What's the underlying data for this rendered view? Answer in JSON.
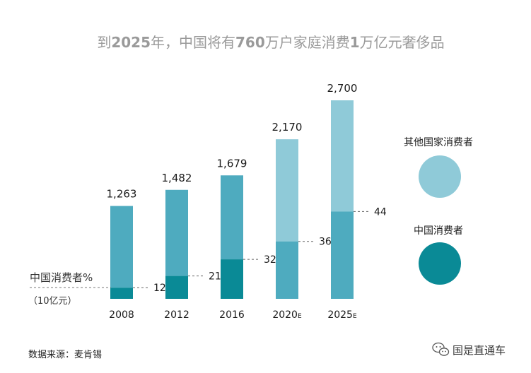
{
  "title_parts": [
    {
      "text": "到",
      "bold": false
    },
    {
      "text": "2025",
      "bold": true
    },
    {
      "text": "年，中国将有",
      "bold": false
    },
    {
      "text": "760",
      "bold": true
    },
    {
      "text": "万户家庭消费",
      "bold": false
    },
    {
      "text": "1",
      "bold": true
    },
    {
      "text": "万亿元奢侈品",
      "bold": false
    }
  ],
  "chart_data": {
    "type": "bar",
    "stacked": true,
    "categories": [
      "2008",
      "2012",
      "2016",
      "2020",
      "2025"
    ],
    "category_suffix": [
      "",
      "",
      "",
      "E",
      "E"
    ],
    "totals": [
      1263,
      1482,
      1679,
      2170,
      2700
    ],
    "total_labels": [
      "1,263",
      "1,482",
      "1,679",
      "2,170",
      "2,700"
    ],
    "chinese_consumer_share_pct": [
      12,
      21,
      32,
      36,
      44
    ],
    "ylabel": "中国消费者%",
    "unit": "（10亿元）",
    "legend": [
      {
        "label": "其他国家消费者"
      },
      {
        "label": "中国消费者"
      }
    ],
    "colors": {
      "historical_other": "#4eabbf",
      "historical_chinese": "#0a8a96",
      "forecast_other": "#8fcad8",
      "forecast_chinese": "#4eabbf",
      "legend_other": "#8fcad8",
      "legend_chinese": "#0a8a96"
    },
    "forecast_flags": [
      false,
      false,
      false,
      true,
      true
    ]
  },
  "source": "数据来源：麦肯锡",
  "brand": "国是直通车"
}
